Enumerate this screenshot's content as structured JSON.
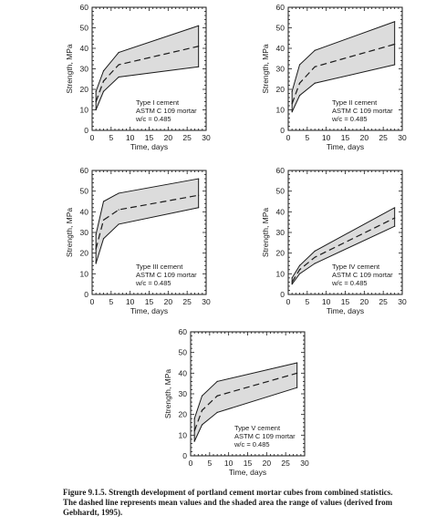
{
  "chart_data": [
    {
      "type": "area",
      "xlabel": "Time, days",
      "ylabel": "Strength, MPa",
      "xlim": [
        0,
        30
      ],
      "ylim": [
        0,
        60
      ],
      "x_ticks": [
        "0",
        "5",
        "10",
        "15",
        "20",
        "25",
        "30"
      ],
      "y_ticks": [
        "0",
        "10",
        "20",
        "30",
        "40",
        "50",
        "60"
      ],
      "annotation": [
        "Type I cement",
        "ASTM C 109 mortar",
        "w/c = 0.485"
      ],
      "legend": "none",
      "grid": false,
      "series": [
        {
          "role": "max",
          "x": [
            1,
            3,
            7,
            28
          ],
          "values": [
            19,
            29,
            38,
            51
          ]
        },
        {
          "role": "mean",
          "x": [
            1,
            3,
            7,
            28
          ],
          "values": [
            14,
            24,
            32,
            41
          ]
        },
        {
          "role": "min",
          "x": [
            1,
            3,
            7,
            28
          ],
          "values": [
            10,
            19,
            26,
            31
          ]
        }
      ]
    },
    {
      "type": "area",
      "xlabel": "Time, days",
      "ylabel": "Strength, MPa",
      "xlim": [
        0,
        30
      ],
      "ylim": [
        0,
        60
      ],
      "x_ticks": [
        "0",
        "5",
        "10",
        "15",
        "20",
        "25",
        "30"
      ],
      "y_ticks": [
        "0",
        "10",
        "20",
        "30",
        "40",
        "50",
        "60"
      ],
      "annotation": [
        "Type II cement",
        "ASTM C 109 mortar",
        "w/c = 0.485"
      ],
      "legend": "none",
      "grid": false,
      "series": [
        {
          "role": "max",
          "x": [
            1,
            3,
            7,
            28
          ],
          "values": [
            19,
            32,
            39,
            53
          ]
        },
        {
          "role": "mean",
          "x": [
            1,
            3,
            7,
            28
          ],
          "values": [
            13,
            23,
            31,
            42
          ]
        },
        {
          "role": "min",
          "x": [
            1,
            3,
            7,
            28
          ],
          "values": [
            9,
            17,
            23,
            32
          ]
        }
      ]
    },
    {
      "type": "area",
      "xlabel": "Time, days",
      "ylabel": "Strength, MPa",
      "xlim": [
        0,
        30
      ],
      "ylim": [
        0,
        60
      ],
      "x_ticks": [
        "0",
        "5",
        "10",
        "15",
        "20",
        "25",
        "30"
      ],
      "y_ticks": [
        "0",
        "10",
        "20",
        "30",
        "40",
        "50",
        "60"
      ],
      "annotation": [
        "Type III cement",
        "ASTM C 109 mortar",
        "w/c = 0.485"
      ],
      "legend": "none",
      "grid": false,
      "series": [
        {
          "role": "max",
          "x": [
            1,
            3,
            7,
            28
          ],
          "values": [
            29,
            45,
            49,
            56
          ]
        },
        {
          "role": "mean",
          "x": [
            1,
            3,
            7,
            28
          ],
          "values": [
            22,
            36,
            41,
            48
          ]
        },
        {
          "role": "min",
          "x": [
            1,
            3,
            7,
            28
          ],
          "values": [
            15,
            27,
            34,
            42
          ]
        }
      ]
    },
    {
      "type": "area",
      "xlabel": "Time, days",
      "ylabel": "Strength, MPa",
      "xlim": [
        0,
        30
      ],
      "ylim": [
        0,
        60
      ],
      "x_ticks": [
        "0",
        "5",
        "10",
        "15",
        "20",
        "25",
        "30"
      ],
      "y_ticks": [
        "0",
        "10",
        "20",
        "30",
        "40",
        "50",
        "60"
      ],
      "annotation": [
        "Type IV cement",
        "ASTM C 109 mortar",
        "w/c = 0.485"
      ],
      "legend": "none",
      "grid": false,
      "series": [
        {
          "role": "max",
          "x": [
            1,
            3,
            7,
            28
          ],
          "values": [
            8,
            14,
            21,
            42
          ]
        },
        {
          "role": "mean",
          "x": [
            1,
            3,
            7,
            28
          ],
          "values": [
            6,
            12,
            18,
            37
          ]
        },
        {
          "role": "min",
          "x": [
            1,
            3,
            7,
            28
          ],
          "values": [
            5,
            10,
            15,
            33
          ]
        }
      ]
    },
    {
      "type": "area",
      "xlabel": "Time, days",
      "ylabel": "Strength, MPa",
      "xlim": [
        0,
        30
      ],
      "ylim": [
        0,
        60
      ],
      "x_ticks": [
        "0",
        "5",
        "10",
        "15",
        "20",
        "25",
        "30"
      ],
      "y_ticks": [
        "0",
        "10",
        "20",
        "30",
        "40",
        "50",
        "60"
      ],
      "annotation": [
        "Type V cement",
        "ASTM C 109 mortar",
        "w/c = 0.485"
      ],
      "legend": "none",
      "grid": false,
      "series": [
        {
          "role": "max",
          "x": [
            1,
            3,
            7,
            28
          ],
          "values": [
            18,
            29,
            36,
            45
          ]
        },
        {
          "role": "mean",
          "x": [
            1,
            3,
            7,
            28
          ],
          "values": [
            12,
            22,
            29,
            40
          ]
        },
        {
          "role": "min",
          "x": [
            1,
            3,
            7,
            28
          ],
          "values": [
            7,
            15,
            21,
            33
          ]
        }
      ]
    }
  ],
  "caption": {
    "line1": "Figure 9.1.5.  Strength development of portland cement mortar cubes from combined statistics.",
    "line2": "The dashed line represents mean values and the shaded area the range of values (derived from",
    "line3": "Gebhardt, 1995)."
  },
  "colors": {
    "band": "#dcdcdc",
    "line": "#1a1a1a"
  }
}
